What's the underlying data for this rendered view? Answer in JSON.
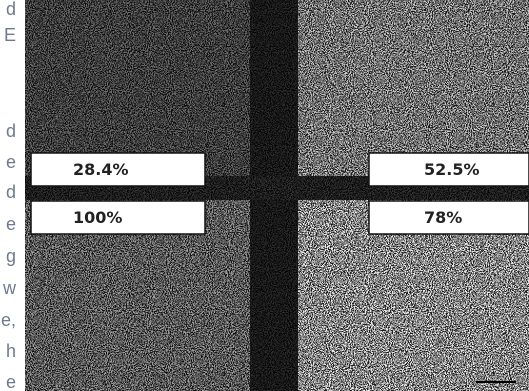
{
  "sidebar_text": [
    "d",
    "E",
    "d",
    "e",
    "d",
    "e",
    "g",
    "w",
    "e,",
    "h",
    "e"
  ],
  "figure": {
    "labels": [
      "28.4%",
      "100%",
      "52.5%",
      "78%"
    ]
  }
}
